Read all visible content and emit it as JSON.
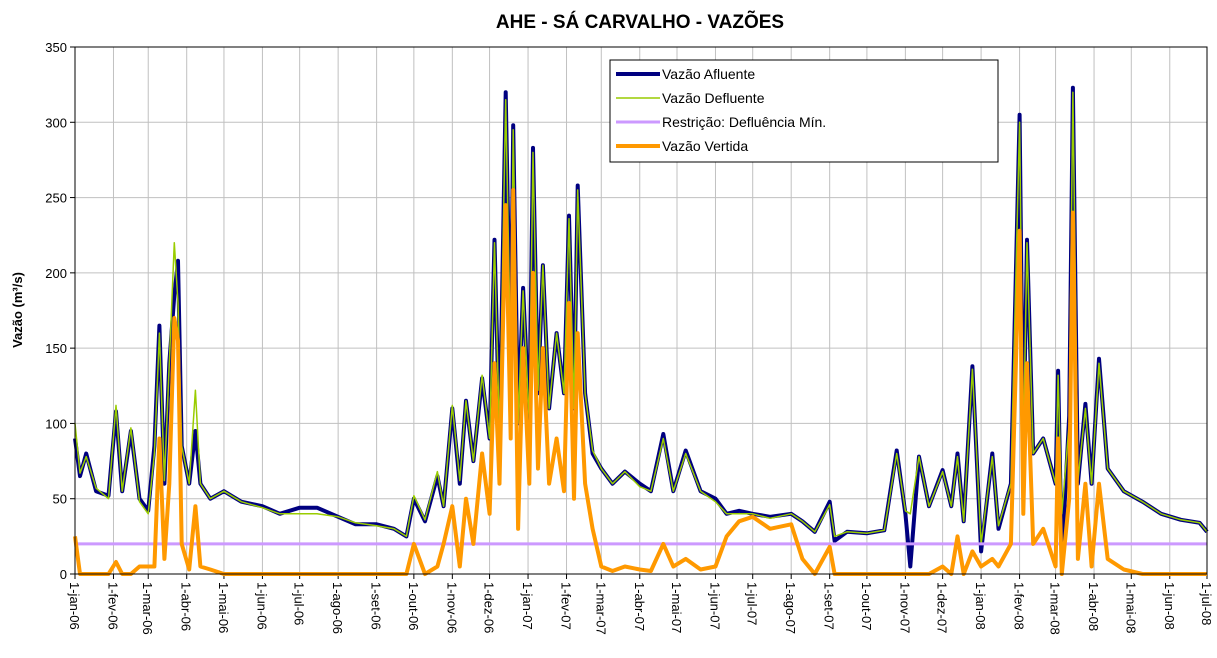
{
  "chart_data": {
    "type": "line",
    "title": "AHE - SÁ CARVALHO - VAZÕES",
    "ylabel": "Vazão (m³/s)",
    "ylim": [
      0,
      350
    ],
    "yticks": [
      0,
      50,
      100,
      150,
      200,
      250,
      300,
      350
    ],
    "xlim": [
      "2006-01-01",
      "2008-07-01"
    ],
    "xticks": [
      {
        "value": "2006-01-01",
        "label": "1-jan-06"
      },
      {
        "value": "2006-02-01",
        "label": "1-fev-06"
      },
      {
        "value": "2006-03-01",
        "label": "1-mar-06"
      },
      {
        "value": "2006-04-01",
        "label": "1-abr-06"
      },
      {
        "value": "2006-05-01",
        "label": "1-mai-06"
      },
      {
        "value": "2006-06-01",
        "label": "1-jun-06"
      },
      {
        "value": "2006-07-01",
        "label": "1-jul-06"
      },
      {
        "value": "2006-08-01",
        "label": "1-ago-06"
      },
      {
        "value": "2006-09-01",
        "label": "1-set-06"
      },
      {
        "value": "2006-10-01",
        "label": "1-out-06"
      },
      {
        "value": "2006-11-01",
        "label": "1-nov-06"
      },
      {
        "value": "2006-12-01",
        "label": "1-dez-06"
      },
      {
        "value": "2007-01-01",
        "label": "1-jan-07"
      },
      {
        "value": "2007-02-01",
        "label": "1-fev-07"
      },
      {
        "value": "2007-03-01",
        "label": "1-mar-07"
      },
      {
        "value": "2007-04-01",
        "label": "1-abr-07"
      },
      {
        "value": "2007-05-01",
        "label": "1-mai-07"
      },
      {
        "value": "2007-06-01",
        "label": "1-jun-07"
      },
      {
        "value": "2007-07-01",
        "label": "1-jul-07"
      },
      {
        "value": "2007-08-01",
        "label": "1-ago-07"
      },
      {
        "value": "2007-09-01",
        "label": "1-set-07"
      },
      {
        "value": "2007-10-01",
        "label": "1-out-07"
      },
      {
        "value": "2007-11-01",
        "label": "1-nov-07"
      },
      {
        "value": "2007-12-01",
        "label": "1-dez-07"
      },
      {
        "value": "2008-01-01",
        "label": "1-jan-08"
      },
      {
        "value": "2008-02-01",
        "label": "1-fev-08"
      },
      {
        "value": "2008-03-01",
        "label": "1-mar-08"
      },
      {
        "value": "2008-04-01",
        "label": "1-abr-08"
      },
      {
        "value": "2008-05-01",
        "label": "1-mai-08"
      },
      {
        "value": "2008-06-01",
        "label": "1-jun-08"
      },
      {
        "value": "2008-07-01",
        "label": "1-jul-08"
      }
    ],
    "grid": true,
    "legend": "top-right",
    "x": [
      "2006-01-01",
      "2006-01-05",
      "2006-01-10",
      "2006-01-18",
      "2006-01-28",
      "2006-02-03",
      "2006-02-08",
      "2006-02-15",
      "2006-02-22",
      "2006-03-01",
      "2006-03-06",
      "2006-03-10",
      "2006-03-14",
      "2006-03-18",
      "2006-03-22",
      "2006-03-25",
      "2006-03-28",
      "2006-04-03",
      "2006-04-08",
      "2006-04-12",
      "2006-04-20",
      "2006-05-01",
      "2006-05-15",
      "2006-06-01",
      "2006-06-15",
      "2006-07-01",
      "2006-07-15",
      "2006-08-01",
      "2006-08-15",
      "2006-09-01",
      "2006-09-15",
      "2006-09-25",
      "2006-10-01",
      "2006-10-10",
      "2006-10-20",
      "2006-10-25",
      "2006-11-01",
      "2006-11-07",
      "2006-11-12",
      "2006-11-18",
      "2006-11-25",
      "2006-12-01",
      "2006-12-05",
      "2006-12-09",
      "2006-12-14",
      "2006-12-18",
      "2006-12-20",
      "2006-12-24",
      "2006-12-28",
      "2007-01-02",
      "2007-01-05",
      "2007-01-09",
      "2007-01-13",
      "2007-01-18",
      "2007-01-24",
      "2007-01-30",
      "2007-02-03",
      "2007-02-07",
      "2007-02-10",
      "2007-02-16",
      "2007-02-22",
      "2007-03-01",
      "2007-03-10",
      "2007-03-20",
      "2007-04-01",
      "2007-04-10",
      "2007-04-20",
      "2007-04-28",
      "2007-05-08",
      "2007-05-20",
      "2007-06-01",
      "2007-06-10",
      "2007-06-20",
      "2007-07-01",
      "2007-07-15",
      "2007-08-01",
      "2007-08-10",
      "2007-08-20",
      "2007-09-01",
      "2007-09-05",
      "2007-09-15",
      "2007-10-01",
      "2007-10-15",
      "2007-10-25",
      "2007-11-01",
      "2007-11-05",
      "2007-11-12",
      "2007-11-20",
      "2007-12-01",
      "2007-12-08",
      "2007-12-13",
      "2007-12-18",
      "2007-12-25",
      "2008-01-01",
      "2008-01-10",
      "2008-01-15",
      "2008-01-25",
      "2008-02-01",
      "2008-02-04",
      "2008-02-07",
      "2008-02-12",
      "2008-02-20",
      "2008-03-01",
      "2008-03-03",
      "2008-03-06",
      "2008-03-12",
      "2008-03-15",
      "2008-03-19",
      "2008-03-25",
      "2008-03-30",
      "2008-04-05",
      "2008-04-12",
      "2008-04-25",
      "2008-05-10",
      "2008-05-25",
      "2008-06-10",
      "2008-06-25",
      "2008-07-01"
    ],
    "series": [
      {
        "name": "Vazão Afluente",
        "color": "#000080",
        "width": 4,
        "values": [
          90,
          65,
          80,
          55,
          52,
          108,
          55,
          95,
          50,
          42,
          85,
          165,
          60,
          140,
          185,
          208,
          85,
          60,
          95,
          60,
          50,
          55,
          48,
          45,
          40,
          44,
          44,
          38,
          33,
          33,
          30,
          25,
          50,
          35,
          65,
          45,
          110,
          60,
          115,
          75,
          130,
          90,
          222,
          90,
          320,
          140,
          298,
          100,
          190,
          100,
          283,
          120,
          205,
          110,
          160,
          120,
          238,
          110,
          258,
          120,
          80,
          70,
          60,
          68,
          60,
          55,
          93,
          55,
          82,
          55,
          50,
          40,
          42,
          40,
          38,
          40,
          35,
          28,
          48,
          22,
          28,
          27,
          29,
          82,
          40,
          5,
          78,
          45,
          69,
          45,
          80,
          35,
          138,
          15,
          80,
          30,
          60,
          305,
          80,
          222,
          80,
          90,
          60,
          135,
          10,
          105,
          323,
          60,
          113,
          60,
          143,
          70,
          55,
          48,
          40,
          36,
          34,
          28
        ]
      },
      {
        "name": "Vazão Defluente",
        "color": "#99cc00",
        "width": 1.5,
        "values": [
          100,
          67,
          78,
          57,
          50,
          112,
          55,
          97,
          48,
          40,
          80,
          160,
          62,
          140,
          220,
          180,
          85,
          60,
          122,
          60,
          50,
          55,
          48,
          44,
          40,
          40,
          40,
          38,
          34,
          32,
          30,
          25,
          52,
          36,
          68,
          45,
          112,
          62,
          115,
          75,
          132,
          90,
          220,
          92,
          315,
          140,
          295,
          100,
          188,
          100,
          280,
          122,
          205,
          110,
          160,
          120,
          236,
          110,
          255,
          120,
          82,
          70,
          60,
          68,
          58,
          55,
          90,
          55,
          80,
          55,
          48,
          40,
          40,
          40,
          37,
          40,
          35,
          28,
          46,
          25,
          28,
          27,
          29,
          80,
          42,
          40,
          78,
          45,
          68,
          45,
          78,
          35,
          136,
          20,
          78,
          32,
          60,
          300,
          82,
          220,
          80,
          90,
          60,
          132,
          40,
          100,
          320,
          62,
          110,
          60,
          140,
          70,
          55,
          48,
          40,
          36,
          34,
          28
        ]
      },
      {
        "name": "Restrição: Defluência Mín.",
        "color": "#cc99ff",
        "width": 3,
        "x": [
          "2006-01-01",
          "2008-07-01"
        ],
        "values": [
          20,
          20
        ]
      },
      {
        "name": "Vazão Vertida",
        "color": "#ff9900",
        "width": 4,
        "values": [
          25,
          0,
          0,
          0,
          0,
          8,
          0,
          0,
          5,
          5,
          5,
          90,
          10,
          60,
          170,
          155,
          20,
          3,
          45,
          5,
          3,
          0,
          0,
          0,
          0,
          0,
          0,
          0,
          0,
          0,
          0,
          0,
          20,
          0,
          5,
          20,
          45,
          5,
          50,
          20,
          80,
          40,
          140,
          60,
          245,
          90,
          255,
          30,
          150,
          60,
          200,
          70,
          150,
          60,
          90,
          55,
          180,
          50,
          160,
          60,
          30,
          5,
          2,
          5,
          3,
          2,
          20,
          5,
          10,
          3,
          5,
          25,
          35,
          38,
          30,
          33,
          10,
          0,
          18,
          0,
          0,
          0,
          0,
          0,
          0,
          0,
          0,
          0,
          5,
          0,
          25,
          0,
          15,
          5,
          10,
          5,
          20,
          228,
          40,
          140,
          20,
          30,
          5,
          90,
          0,
          50,
          240,
          10,
          60,
          5,
          60,
          10,
          3,
          0,
          0,
          0,
          0,
          0
        ]
      }
    ]
  }
}
